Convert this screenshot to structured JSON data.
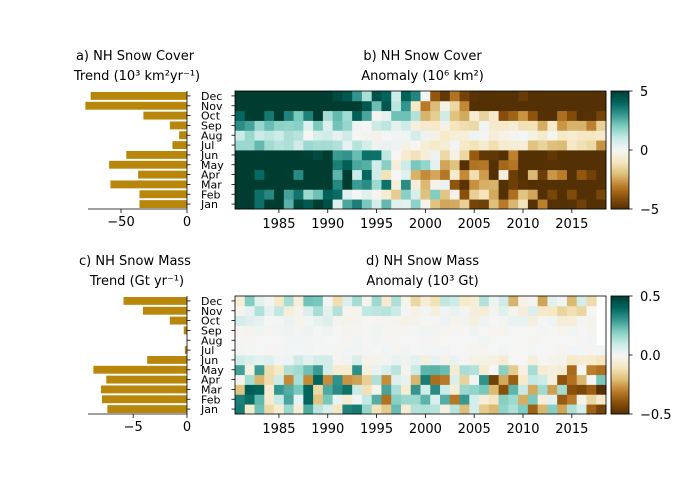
{
  "chart_data": [
    {
      "id": "a",
      "type": "bar",
      "orientation": "horizontal",
      "title": "a) NH Snow Cover",
      "subtitle": "Trend (10³ km²yr⁻¹)",
      "categories": [
        "Jan",
        "Feb",
        "Mar",
        "Apr",
        "May",
        "Jun",
        "Jul",
        "Aug",
        "Sep",
        "Oct",
        "Nov",
        "Dec"
      ],
      "values": [
        -36,
        -36,
        -58,
        -37,
        -59,
        -46,
        -11,
        -6,
        -13,
        -33,
        -77,
        -73
      ],
      "xlim": [
        -75,
        0
      ],
      "xticks": [
        "−50",
        "0"
      ],
      "bar_color": "#b8860b"
    },
    {
      "id": "b",
      "type": "heatmap",
      "title": "b) NH Snow Cover",
      "subtitle": "Anomaly (10⁶ km²)",
      "years": [
        1981,
        2018
      ],
      "xticks": [
        "1985",
        "1990",
        "1995",
        "2000",
        "2005",
        "2010",
        "2015"
      ],
      "months": [
        "Jan",
        "Feb",
        "Mar",
        "Apr",
        "May",
        "Jun",
        "Jul",
        "Aug",
        "Sep",
        "Oct",
        "Nov",
        "Dec"
      ],
      "vmin": -5,
      "vmax": 5,
      "colorbar_ticks": [
        "5",
        "0",
        "−5"
      ],
      "colormap": "BrBG",
      "anomaly_amplitude_by_month": [
        3,
        3,
        3,
        3,
        3,
        2,
        0.8,
        0.8,
        1.2,
        2.5,
        3.5,
        3.5
      ],
      "trend_per_year_by_month": [
        -0.036,
        -0.036,
        -0.058,
        -0.037,
        -0.059,
        -0.046,
        -0.011,
        -0.006,
        -0.013,
        -0.033,
        -0.077,
        -0.073
      ],
      "missing_cells": []
    },
    {
      "id": "c",
      "type": "bar",
      "orientation": "horizontal",
      "title": "c) NH Snow Mass",
      "subtitle": "Trend (Gt yr⁻¹)",
      "categories": [
        "Jan",
        "Feb",
        "Mar",
        "Apr",
        "May",
        "Jun",
        "Jul",
        "Aug",
        "Sep",
        "Oct",
        "Nov",
        "Dec"
      ],
      "values": [
        -7.4,
        -7.9,
        -8.0,
        -7.5,
        -8.7,
        -3.7,
        -0.2,
        0,
        -0.3,
        -1.6,
        -4.1,
        -5.9
      ],
      "xlim": [
        -9.2,
        0
      ],
      "xticks": [
        "−5",
        "0"
      ],
      "bar_color": "#b8860b"
    },
    {
      "id": "d",
      "type": "heatmap",
      "title": "d) NH Snow Mass",
      "subtitle": "Anomaly (10³ Gt)",
      "years": [
        1981,
        2018
      ],
      "xticks": [
        "1985",
        "1990",
        "1995",
        "2000",
        "2005",
        "2010",
        "2015"
      ],
      "months": [
        "Jan",
        "Feb",
        "Mar",
        "Apr",
        "May",
        "Jun",
        "Jul",
        "Aug",
        "Sep",
        "Oct",
        "Nov",
        "Dec"
      ],
      "vmin": -0.5,
      "vmax": 0.5,
      "colorbar_ticks": [
        "0.5",
        "0.0",
        "−0.5"
      ],
      "colormap": "BrBG",
      "anomaly_amplitude_by_month": [
        0.35,
        0.4,
        0.4,
        0.45,
        0.3,
        0.05,
        0.01,
        0.01,
        0.02,
        0.05,
        0.12,
        0.2
      ],
      "trend_per_year_by_month": [
        -0.0074,
        -0.0079,
        -0.008,
        -0.0075,
        -0.0087,
        -0.0037,
        0,
        0,
        0,
        -0.0016,
        -0.0041,
        -0.0059
      ],
      "missing_cells": [
        [
          "Nov",
          2018
        ],
        [
          "Dec",
          2018
        ],
        [
          "Oct",
          2018
        ],
        [
          "Sep",
          2018
        ],
        [
          "Aug",
          2018
        ]
      ]
    }
  ]
}
